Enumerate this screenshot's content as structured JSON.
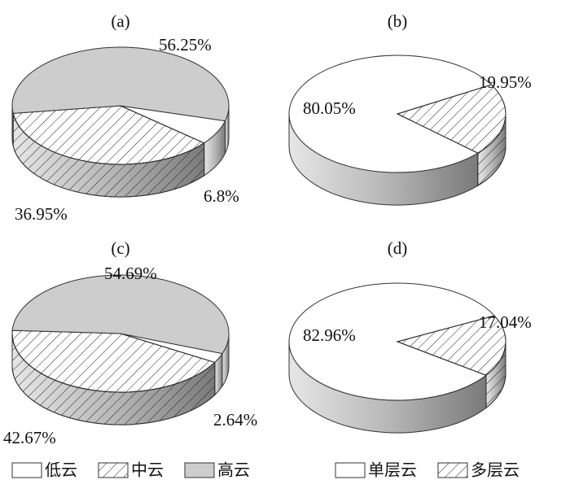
{
  "chart_data": [
    {
      "type": "pie",
      "title": "(a)",
      "categories": [
        "低云",
        "中云",
        "高云"
      ],
      "values": [
        6.8,
        36.95,
        56.25
      ],
      "value_labels": [
        "6.8%",
        "36.95%",
        "56.25%"
      ],
      "colors": [
        "#ffffff",
        "#ffffff",
        "#cdcdcd"
      ],
      "hatch": [
        false,
        true,
        false
      ]
    },
    {
      "type": "pie",
      "title": "(b)",
      "categories": [
        "单层云",
        "多层云"
      ],
      "values": [
        80.05,
        19.95
      ],
      "value_labels": [
        "80.05%",
        "19.95%"
      ],
      "colors": [
        "#ffffff",
        "#ffffff"
      ],
      "hatch": [
        false,
        true
      ]
    },
    {
      "type": "pie",
      "title": "(c)",
      "values": [
        2.64,
        42.67,
        54.69
      ],
      "value_labels": [
        "2.64%",
        "42.67%",
        "54.69%"
      ],
      "colors": [
        "#ffffff",
        "#ffffff",
        "#cdcdcd"
      ],
      "hatch": [
        false,
        true,
        false
      ]
    },
    {
      "type": "pie",
      "title": "(d)",
      "values": [
        82.96,
        17.04
      ],
      "value_labels": [
        "82.96%",
        "17.04%"
      ],
      "colors": [
        "#ffffff",
        "#ffffff"
      ],
      "hatch": [
        false,
        true
      ]
    }
  ]
}
